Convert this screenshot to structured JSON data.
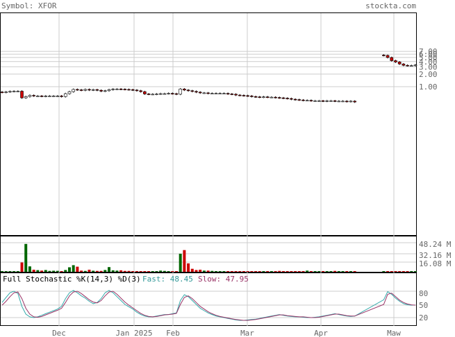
{
  "header": {
    "symbol_text": "Symbol: XFOR",
    "site_text": "stockta.com"
  },
  "price_axis": {
    "ticks": [
      "7.00",
      "6.00",
      "5.00",
      "4.00",
      "3.00",
      "2.00",
      "1.00"
    ]
  },
  "volume_axis": {
    "ticks": [
      "48.24 M",
      "32.16 M",
      "16.08 M"
    ]
  },
  "stochastic": {
    "title": "Full Stochastic %K(14,3) %D(3)",
    "fast_label": "Fast: 48.45",
    "slow_label": "Slow: 47.95",
    "ticks": [
      "80",
      "50",
      "20"
    ]
  },
  "x_axis": {
    "labels": [
      "Dec",
      "Jan 2025",
      "Feb",
      "Mar",
      "Apr",
      "Maw"
    ]
  },
  "colors": {
    "up": "#ffffff",
    "down": "#cc0000",
    "vol_up": "#006600",
    "vol_down": "#cc0000",
    "fast_line": "#33aaaa",
    "slow_line": "#993366",
    "fast_text": "#339999",
    "slow_text": "#993366",
    "grid": "#cccccc",
    "text": "#666666"
  },
  "chart_data": {
    "type": "candlestick",
    "x_labels": [
      "Dec",
      "Jan 2025",
      "Feb",
      "Mar",
      "Apr",
      "Maw"
    ],
    "y_scale": "log",
    "price_ticks": [
      7,
      6,
      5,
      4,
      3,
      2,
      1
    ],
    "price_close": [
      0.73,
      0.75,
      0.77,
      0.78,
      0.78,
      0.54,
      0.58,
      0.62,
      0.6,
      0.6,
      0.59,
      0.6,
      0.6,
      0.6,
      0.6,
      0.58,
      0.68,
      0.76,
      0.86,
      0.84,
      0.82,
      0.86,
      0.83,
      0.85,
      0.82,
      0.78,
      0.8,
      0.85,
      0.88,
      0.88,
      0.87,
      0.86,
      0.85,
      0.83,
      0.8,
      0.76,
      0.67,
      0.66,
      0.66,
      0.67,
      0.68,
      0.68,
      0.69,
      0.68,
      0.66,
      0.88,
      0.83,
      0.8,
      0.77,
      0.74,
      0.71,
      0.71,
      0.69,
      0.69,
      0.69,
      0.69,
      0.69,
      0.67,
      0.66,
      0.63,
      0.62,
      0.61,
      0.6,
      0.58,
      0.57,
      0.56,
      0.57,
      0.56,
      0.56,
      0.55,
      0.54,
      0.53,
      0.52,
      0.5,
      0.49,
      0.48,
      0.47,
      0.47,
      0.46,
      0.46,
      0.46,
      0.45,
      0.46,
      0.46,
      0.45,
      0.45,
      0.45,
      0.44,
      0.45,
      0.43,
      5.6,
      5.0,
      4.2,
      3.9,
      3.5,
      3.25,
      3.2,
      3.2,
      3.3
    ],
    "volume_m": [
      0.9,
      0.8,
      0.7,
      0.8,
      1.0,
      15.5,
      46.2,
      9.0,
      3.5,
      2.8,
      2.0,
      3.0,
      1.5,
      1.8,
      1.6,
      1.2,
      3.0,
      7.5,
      11.0,
      8.5,
      2.0,
      1.5,
      3.5,
      1.8,
      1.5,
      1.5,
      3.0,
      7.8,
      2.5,
      2.0,
      2.5,
      1.5,
      1.5,
      1.0,
      1.2,
      1.0,
      1.0,
      1.0,
      1.0,
      1.0,
      2.0,
      1.5,
      1.0,
      1.0,
      1.0,
      30.0,
      36.0,
      14.0,
      5.0,
      3.0,
      3.5,
      2.0,
      2.0,
      1.5,
      1.0,
      0.8,
      0.8,
      1.0,
      0.8,
      0.8,
      1.0,
      0.8,
      0.8,
      1.0,
      0.8,
      0.8,
      1.0,
      1.0,
      0.8,
      0.8,
      1.5,
      0.8,
      0.8,
      1.0,
      1.0,
      0.8,
      0.8,
      2.0,
      1.0,
      1.0,
      1.0,
      1.0,
      1.0,
      1.0,
      1.5,
      1.0,
      0.5,
      0.5,
      0.8,
      1.2,
      0.5,
      0.5,
      0.5,
      0.5,
      0.5,
      0.5,
      0.5,
      0.5,
      0.5
    ],
    "stoch_fast": [
      55,
      68,
      80,
      84,
      78,
      45,
      25,
      18,
      16,
      18,
      22,
      26,
      30,
      34,
      38,
      45,
      65,
      80,
      86,
      80,
      72,
      66,
      58,
      52,
      55,
      65,
      80,
      86,
      80,
      70,
      60,
      50,
      44,
      38,
      30,
      24,
      20,
      18,
      18,
      20,
      22,
      24,
      24,
      26,
      28,
      60,
      75,
      70,
      60,
      50,
      40,
      34,
      28,
      24,
      20,
      18,
      16,
      14,
      12,
      10,
      9,
      9,
      10,
      11,
      12,
      14,
      16,
      18,
      20,
      22,
      24,
      22,
      20,
      19,
      18,
      18,
      17,
      16,
      16,
      17,
      18,
      20,
      22,
      24,
      26,
      24,
      22,
      20,
      19,
      20,
      62,
      83,
      76,
      66,
      58,
      52,
      49,
      48,
      48.45
    ],
    "stoch_slow": [
      48,
      58,
      70,
      80,
      82,
      65,
      40,
      25,
      18,
      17,
      19,
      23,
      27,
      31,
      35,
      40,
      55,
      72,
      82,
      84,
      78,
      70,
      62,
      56,
      54,
      60,
      72,
      82,
      84,
      76,
      66,
      56,
      48,
      41,
      34,
      27,
      22,
      19,
      18,
      19,
      21,
      23,
      24,
      25,
      27,
      50,
      68,
      72,
      65,
      55,
      45,
      38,
      31,
      26,
      22,
      19,
      17,
      15,
      13,
      11,
      10,
      9,
      9,
      10,
      11,
      13,
      15,
      17,
      19,
      21,
      23,
      23,
      21,
      20,
      19,
      18,
      18,
      17,
      16,
      16,
      17,
      19,
      21,
      23,
      25,
      25,
      23,
      21,
      20,
      20,
      50,
      76,
      79,
      70,
      61,
      55,
      51,
      49,
      47.95
    ]
  }
}
